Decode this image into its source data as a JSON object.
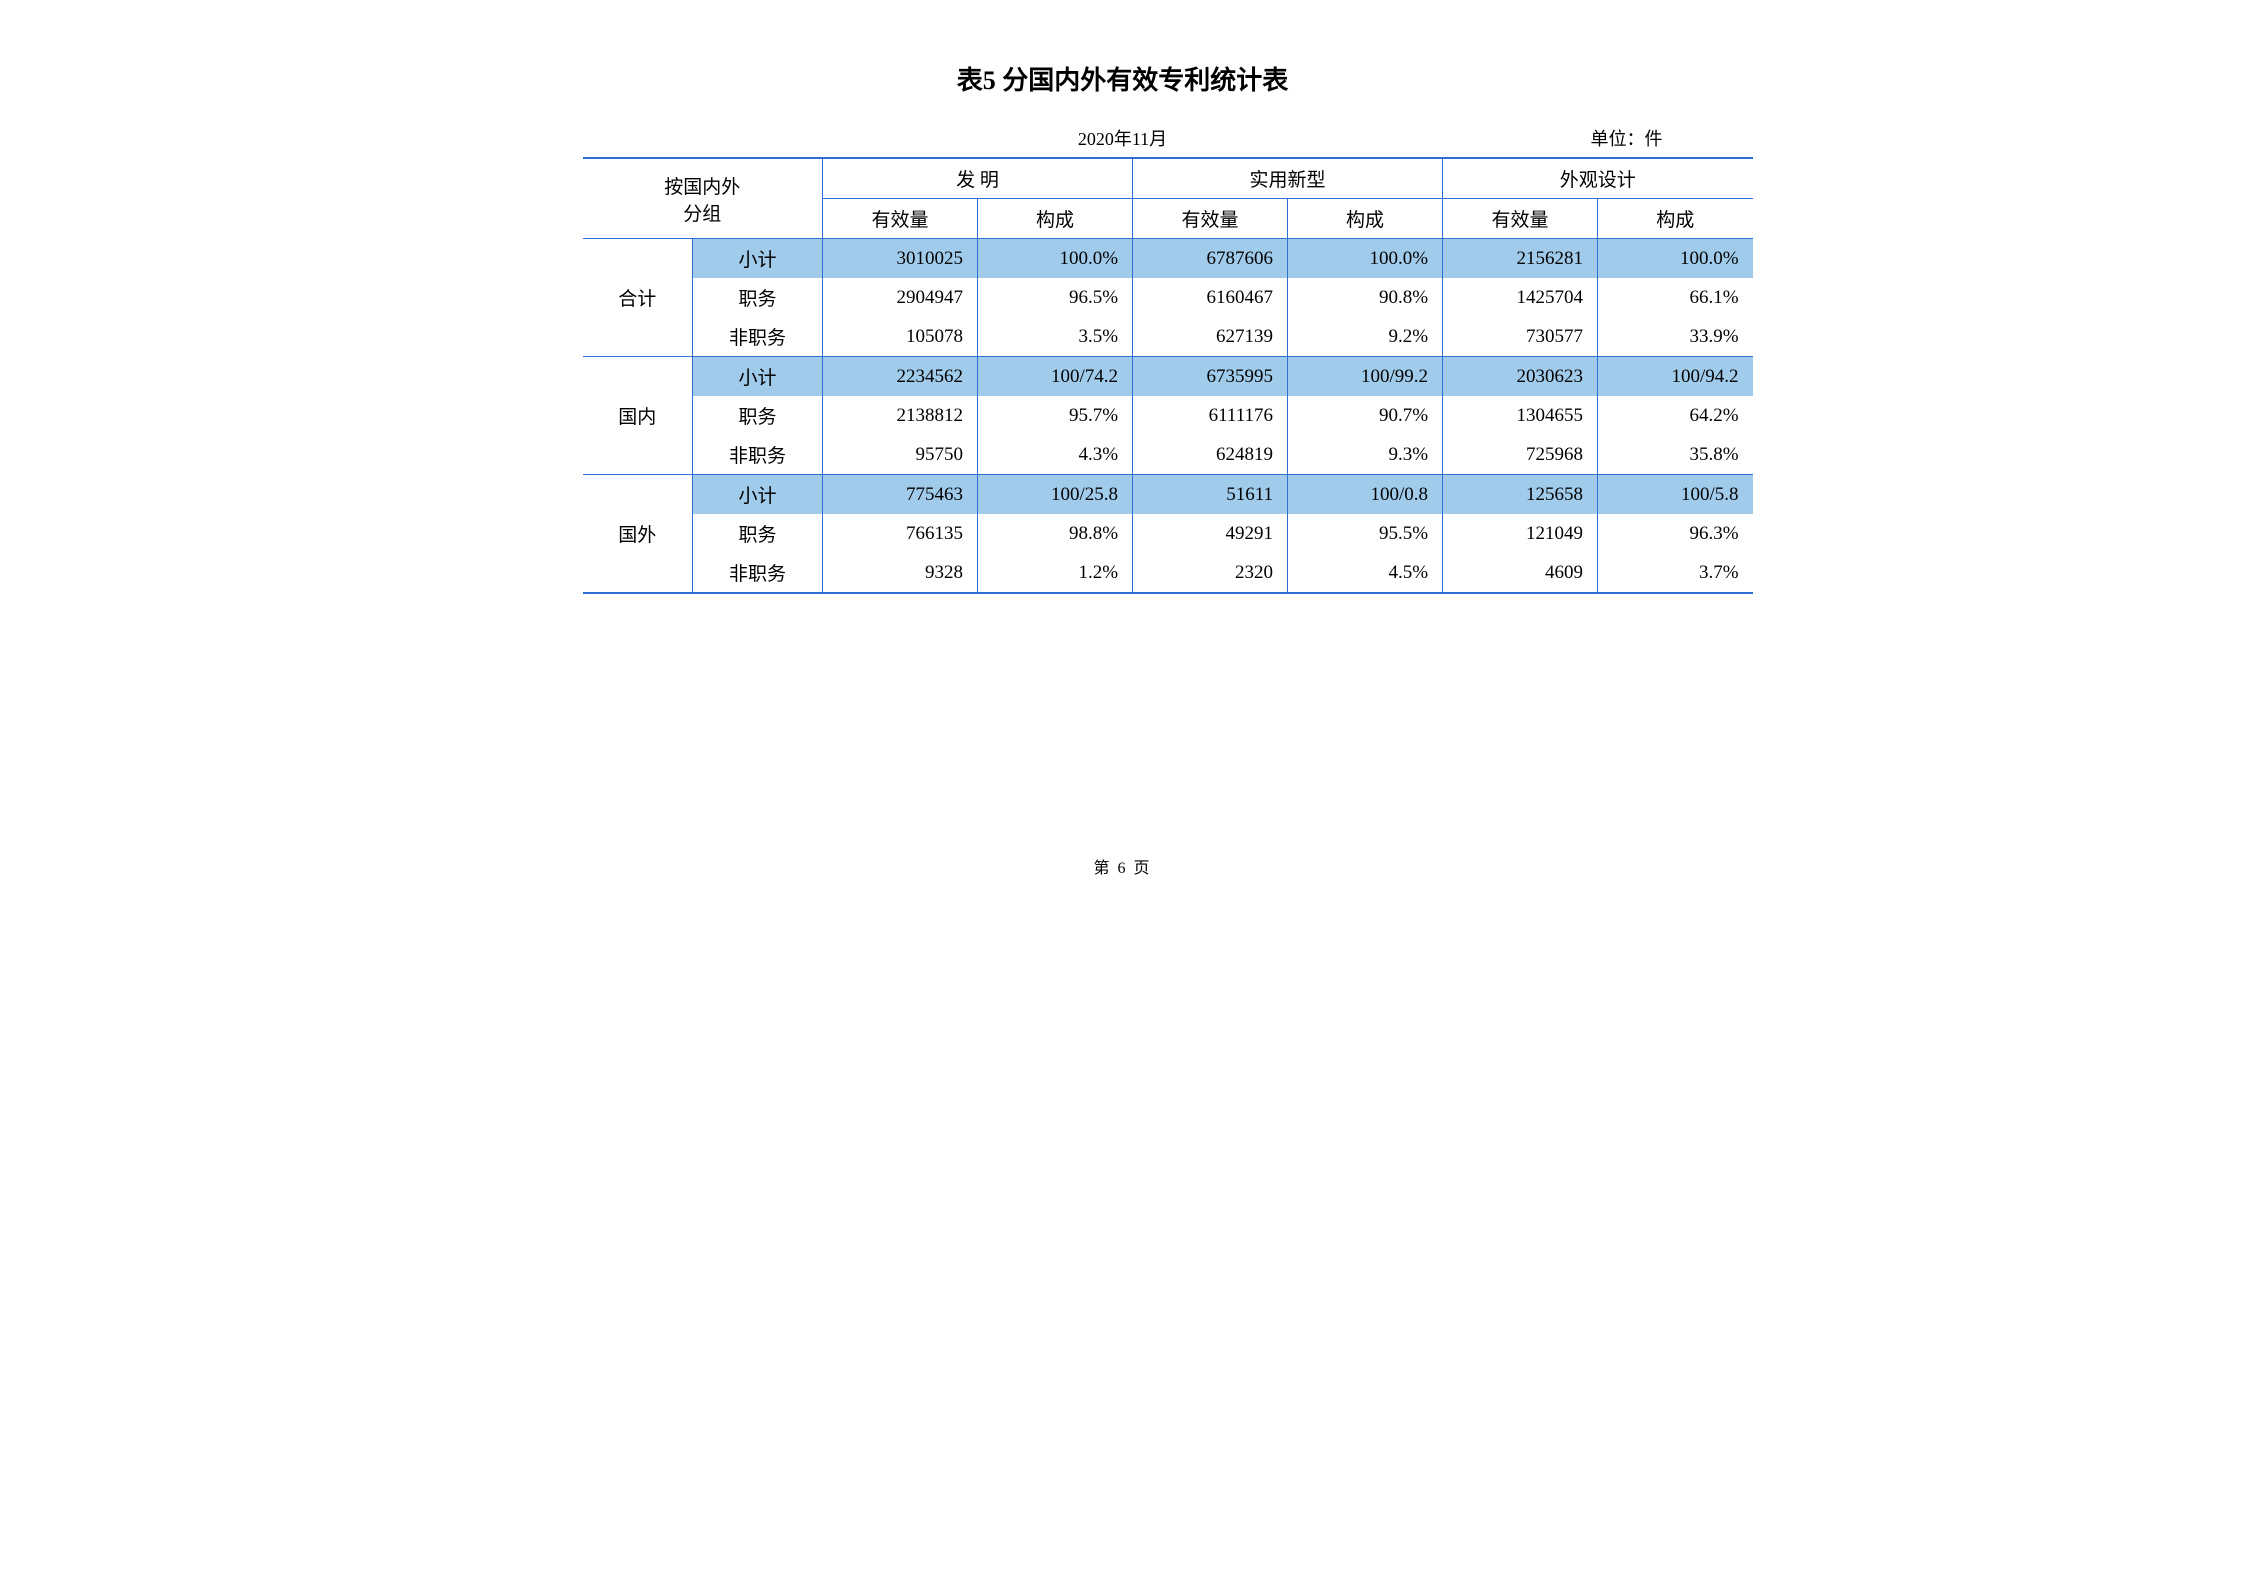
{
  "title": "表5  分国内外有效专利统计表",
  "date": "2020年11月",
  "unit_label": "单位：件",
  "page_number": "第 6 页",
  "header": {
    "group_label_line1": "按国内外",
    "group_label_line2": "分组",
    "cat_invention": "发   明",
    "cat_utility": "实用新型",
    "cat_design": "外观设计",
    "sub_valid": "有效量",
    "sub_comp": "构成"
  },
  "groups": [
    {
      "name": "合计",
      "rows": [
        {
          "label": "小计",
          "hl": true,
          "v": [
            "3010025",
            "100.0%",
            "6787606",
            "100.0%",
            "2156281",
            "100.0%"
          ]
        },
        {
          "label": "职务",
          "hl": false,
          "v": [
            "2904947",
            "96.5%",
            "6160467",
            "90.8%",
            "1425704",
            "66.1%"
          ]
        },
        {
          "label": "非职务",
          "hl": false,
          "v": [
            "105078",
            "3.5%",
            "627139",
            "9.2%",
            "730577",
            "33.9%"
          ]
        }
      ]
    },
    {
      "name": "国内",
      "rows": [
        {
          "label": "小计",
          "hl": true,
          "v": [
            "2234562",
            "100/74.2",
            "6735995",
            "100/99.2",
            "2030623",
            "100/94.2"
          ]
        },
        {
          "label": "职务",
          "hl": false,
          "v": [
            "2138812",
            "95.7%",
            "6111176",
            "90.7%",
            "1304655",
            "64.2%"
          ]
        },
        {
          "label": "非职务",
          "hl": false,
          "v": [
            "95750",
            "4.3%",
            "624819",
            "9.3%",
            "725968",
            "35.8%"
          ]
        }
      ]
    },
    {
      "name": "国外",
      "rows": [
        {
          "label": "小计",
          "hl": true,
          "v": [
            "775463",
            "100/25.8",
            "51611",
            "100/0.8",
            "125658",
            "100/5.8"
          ]
        },
        {
          "label": "职务",
          "hl": false,
          "v": [
            "766135",
            "98.8%",
            "49291",
            "95.5%",
            "121049",
            "96.3%"
          ]
        },
        {
          "label": "非职务",
          "hl": false,
          "v": [
            "9328",
            "1.2%",
            "2320",
            "4.5%",
            "4609",
            "3.7%"
          ]
        }
      ]
    }
  ],
  "colors": {
    "line": "#2f6fd1",
    "highlight": "#a0cbeb",
    "background": "#ffffff",
    "text": "#000000"
  }
}
